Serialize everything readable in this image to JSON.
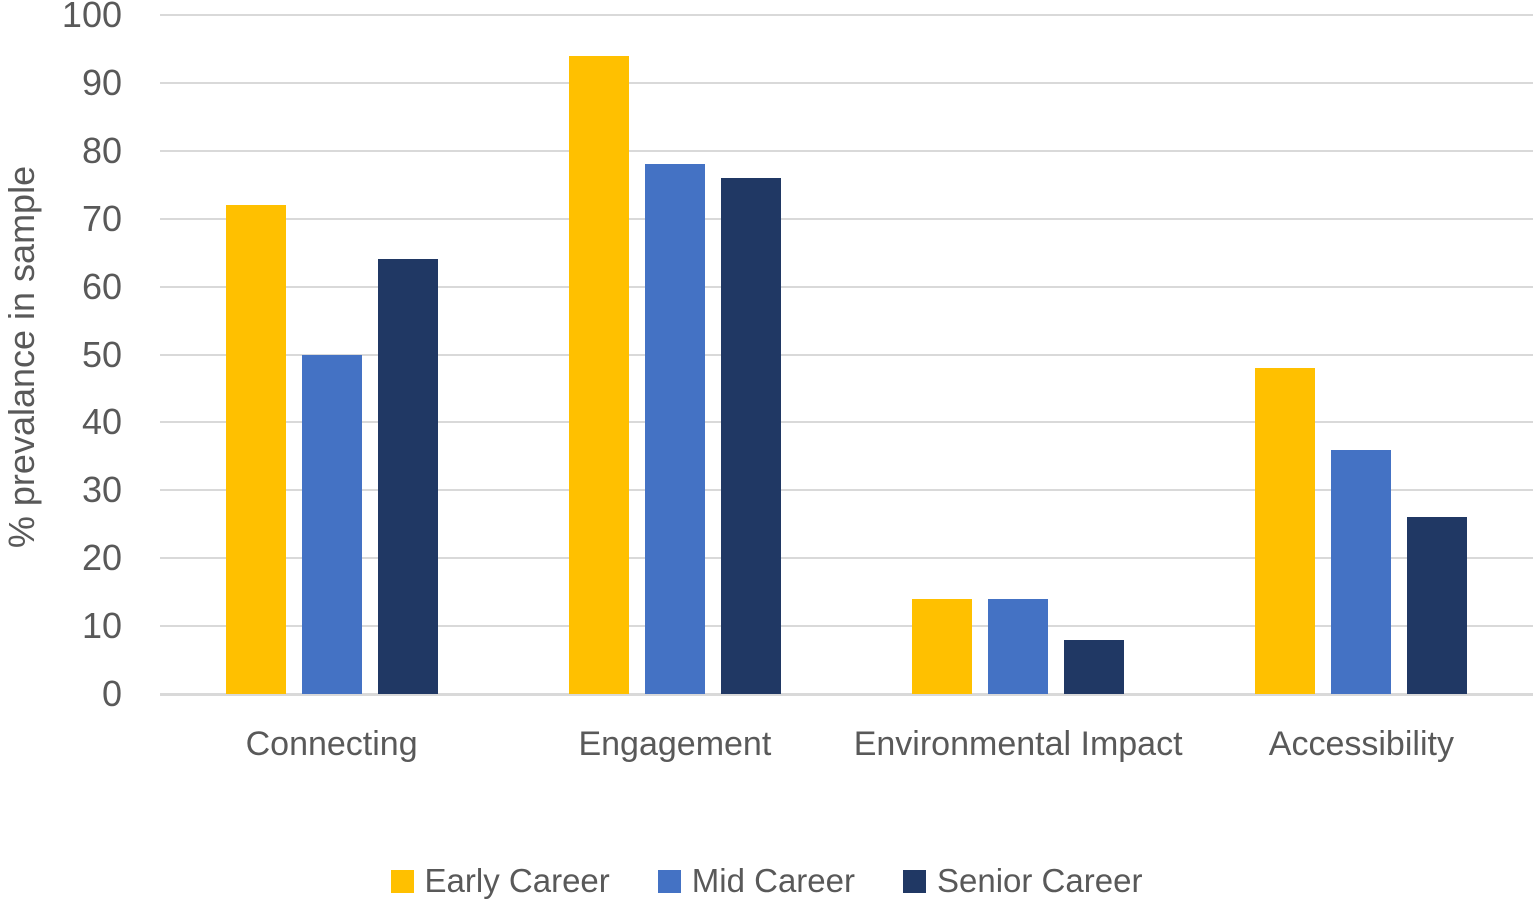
{
  "chart_data": {
    "type": "bar",
    "title": "",
    "xlabel": "",
    "ylabel": "% prevalance in sample",
    "categories": [
      "Connecting",
      "Engagement",
      "Environmental Impact",
      "Accessibility"
    ],
    "series": [
      {
        "name": "Early Career",
        "color": "#FFC000",
        "values": [
          72,
          94,
          14,
          48
        ]
      },
      {
        "name": "Mid Career",
        "color": "#4472C4",
        "values": [
          50,
          78,
          14,
          36
        ]
      },
      {
        "name": "Senior Career",
        "color": "#203864",
        "values": [
          64,
          76,
          8,
          26
        ]
      }
    ],
    "ylim": [
      0,
      100
    ],
    "yticks": [
      0,
      10,
      20,
      30,
      40,
      50,
      60,
      70,
      80,
      90,
      100
    ],
    "grid": true,
    "legend_position": "bottom"
  },
  "colors": {
    "text": "#595959",
    "gridline": "#D9D9D9",
    "axis_line": "#D9D9D9",
    "background": "#FFFFFF"
  }
}
